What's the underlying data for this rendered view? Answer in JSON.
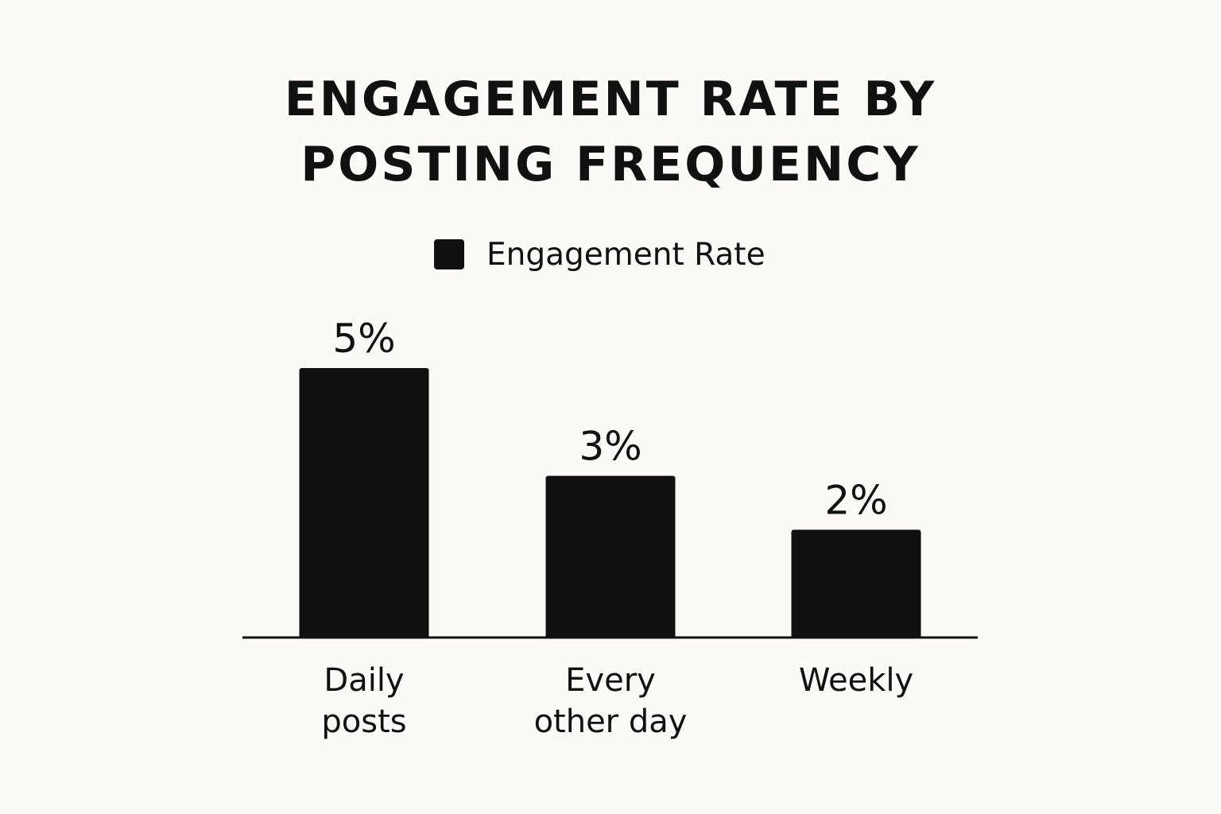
{
  "chart_data": {
    "type": "bar",
    "title_lines": [
      "ENGAGEMENT RATE BY",
      "POSTING FREQUENCY"
    ],
    "categories": [
      [
        "Daily",
        "posts"
      ],
      [
        "Every",
        "other day"
      ],
      [
        "Weekly"
      ]
    ],
    "series": [
      {
        "name": "Engagement Rate",
        "values": [
          5,
          3,
          2
        ],
        "value_labels": [
          "5%",
          "3%",
          "2%"
        ],
        "color": "#111111"
      }
    ],
    "ylim": [
      0,
      5
    ],
    "grid": false,
    "legend_position": "top-center",
    "background": "#fbfaf6"
  }
}
